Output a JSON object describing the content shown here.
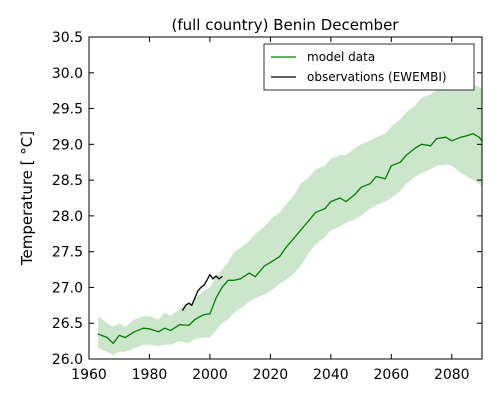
{
  "chart_data": {
    "type": "line",
    "title": "(full country) Benin December",
    "xlabel": "",
    "ylabel": "Temperature [ °C]",
    "xlim": [
      1960,
      2090
    ],
    "ylim": [
      26.0,
      30.5
    ],
    "x_ticks": [
      "1960",
      "1980",
      "2000",
      "2020",
      "2040",
      "2060",
      "2080"
    ],
    "y_ticks": [
      "26.0",
      "26.5",
      "27.0",
      "27.5",
      "28.0",
      "28.5",
      "29.0",
      "29.5",
      "30.0",
      "30.5"
    ],
    "grid": false,
    "legend_position": "top-right",
    "series": [
      {
        "name": "model data",
        "color": "#008000",
        "x": [
          1963,
          1966,
          1968,
          1970,
          1972,
          1975,
          1978,
          1980,
          1983,
          1985,
          1987,
          1990,
          1993,
          1995,
          1998,
          2000,
          2002,
          2004,
          2006,
          2008,
          2010,
          2013,
          2015,
          2018,
          2020,
          2023,
          2025,
          2028,
          2030,
          2033,
          2035,
          2038,
          2040,
          2043,
          2045,
          2048,
          2050,
          2053,
          2055,
          2058,
          2060,
          2063,
          2065,
          2068,
          2070,
          2073,
          2075,
          2078,
          2080,
          2083,
          2085,
          2087,
          2089,
          2090
        ],
        "values": [
          26.35,
          26.3,
          26.22,
          26.33,
          26.3,
          26.38,
          26.43,
          26.42,
          26.38,
          26.43,
          26.4,
          26.48,
          26.47,
          26.55,
          26.62,
          26.63,
          26.85,
          27.0,
          27.1,
          27.1,
          27.12,
          27.2,
          27.15,
          27.3,
          27.35,
          27.43,
          27.55,
          27.7,
          27.8,
          27.95,
          28.05,
          28.1,
          28.2,
          28.25,
          28.2,
          28.3,
          28.4,
          28.45,
          28.55,
          28.52,
          28.7,
          28.75,
          28.85,
          28.95,
          29.0,
          28.98,
          29.08,
          29.1,
          29.05,
          29.1,
          29.12,
          29.15,
          29.1,
          29.05
        ],
        "band_low": [
          26.15,
          26.1,
          26.05,
          26.1,
          26.1,
          26.15,
          26.2,
          26.2,
          26.18,
          26.2,
          26.2,
          26.25,
          26.22,
          26.28,
          26.3,
          26.3,
          26.4,
          26.5,
          26.55,
          26.65,
          26.7,
          26.8,
          26.85,
          26.9,
          26.95,
          27.05,
          27.1,
          27.2,
          27.3,
          27.5,
          27.6,
          27.7,
          27.8,
          27.85,
          27.9,
          27.95,
          28.0,
          28.1,
          28.15,
          28.2,
          28.25,
          28.35,
          28.45,
          28.55,
          28.6,
          28.65,
          28.7,
          28.72,
          28.7,
          28.6,
          28.55,
          28.5,
          28.45,
          28.4
        ],
        "band_high": [
          26.6,
          26.5,
          26.45,
          26.5,
          26.45,
          26.55,
          26.6,
          26.6,
          26.55,
          26.65,
          26.6,
          26.7,
          26.75,
          26.85,
          26.95,
          27.0,
          27.15,
          27.25,
          27.35,
          27.5,
          27.55,
          27.65,
          27.75,
          27.85,
          27.95,
          28.05,
          28.15,
          28.3,
          28.45,
          28.55,
          28.65,
          28.7,
          28.8,
          28.85,
          28.85,
          28.95,
          29.0,
          29.05,
          29.1,
          29.15,
          29.25,
          29.35,
          29.45,
          29.55,
          29.65,
          29.7,
          29.75,
          29.8,
          29.82,
          29.85,
          29.85,
          29.83,
          29.8,
          29.78
        ]
      },
      {
        "name": "observations (EWEMBI)",
        "color": "#000000",
        "x": [
          1991,
          1992,
          1993,
          1994,
          1995,
          1996,
          1997,
          1998,
          1999,
          2000,
          2001,
          2002,
          2003,
          2004
        ],
        "values": [
          26.68,
          26.75,
          26.78,
          26.75,
          26.85,
          26.95,
          27.0,
          27.03,
          27.1,
          27.18,
          27.12,
          27.16,
          27.12,
          27.15
        ]
      }
    ]
  }
}
